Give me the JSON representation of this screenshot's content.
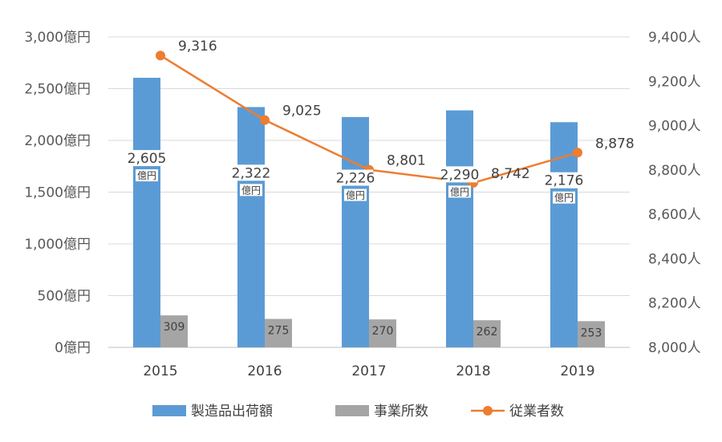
{
  "chart_data": {
    "type": "bar",
    "categories": [
      "2015",
      "2016",
      "2017",
      "2018",
      "2019"
    ],
    "series": [
      {
        "name": "製造品出荷額",
        "type": "bar",
        "axis": "left",
        "values": [
          2605,
          2322,
          2226,
          2290,
          2176
        ],
        "value_labels": [
          "2,605",
          "2,322",
          "2,226",
          "2,290",
          "2,176"
        ],
        "label_unit": "億円",
        "color": "#5B9BD5"
      },
      {
        "name": "事業所数",
        "type": "bar",
        "axis": "left",
        "values": [
          309,
          275,
          270,
          262,
          253
        ],
        "value_labels": [
          "309",
          "275",
          "270",
          "262",
          "253"
        ],
        "color": "#A5A5A5"
      },
      {
        "name": "従業者数",
        "type": "line",
        "axis": "right",
        "values": [
          9316,
          9025,
          8801,
          8742,
          8878
        ],
        "value_labels": [
          "9,316",
          "9,025",
          "8,801",
          "8,742",
          "8,878"
        ],
        "color": "#ED7D31"
      }
    ],
    "left_axis": {
      "ylim": [
        0,
        3000
      ],
      "ticks": [
        0,
        500,
        1000,
        1500,
        2000,
        2500,
        3000
      ],
      "tick_labels": [
        "0億円",
        "500億円",
        "1,000億円",
        "1,500億円",
        "2,000億円",
        "2,500億円",
        "3,000億円"
      ]
    },
    "right_axis": {
      "ylim": [
        8000,
        9400
      ],
      "ticks": [
        8000,
        8200,
        8400,
        8600,
        8800,
        9000,
        9200,
        9400
      ],
      "tick_labels": [
        "8,000人",
        "8,200人",
        "8,400人",
        "8,600人",
        "8,800人",
        "9,000人",
        "9,200人",
        "9,400人"
      ]
    },
    "grid": true,
    "legend_position": "bottom"
  }
}
